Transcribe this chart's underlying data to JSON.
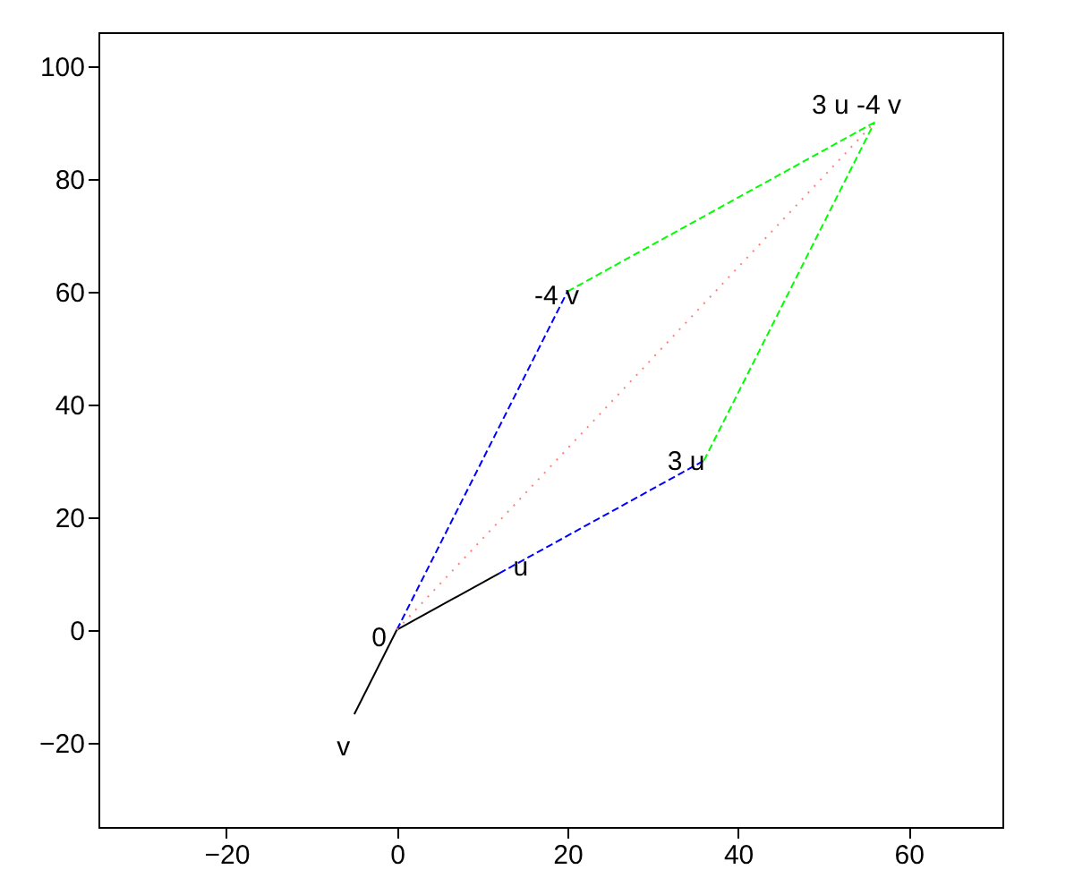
{
  "chart_data": {
    "type": "line",
    "grid": false,
    "marker": "none",
    "xlim": [
      -35,
      71
    ],
    "ylim": [
      -35,
      106
    ],
    "xticks": [
      -20,
      0,
      20,
      40,
      60
    ],
    "yticks": [
      -20,
      0,
      20,
      40,
      60,
      80,
      100
    ],
    "series": [
      {
        "color": "#000000",
        "line_style": "solid",
        "x": [
          0,
          12
        ],
        "values": [
          0,
          10
        ]
      },
      {
        "color": "#000000",
        "line_style": "solid",
        "x": [
          0,
          -5
        ],
        "values": [
          0,
          -15
        ]
      },
      {
        "color": "#0000ff",
        "line_style": "dashed",
        "x": [
          12,
          36
        ],
        "values": [
          10,
          30
        ]
      },
      {
        "color": "#0000ff",
        "line_style": "dashed",
        "x": [
          0,
          20
        ],
        "values": [
          0,
          60
        ]
      },
      {
        "color": "#00ff00",
        "line_style": "dashed",
        "x": [
          20,
          56
        ],
        "values": [
          60,
          90
        ]
      },
      {
        "color": "#00ff00",
        "line_style": "dashed",
        "x": [
          36,
          56
        ],
        "values": [
          30,
          90
        ]
      },
      {
        "color": "#ff8080",
        "line_style": "dotted",
        "x": [
          0,
          56
        ],
        "values": [
          0,
          90
        ]
      }
    ],
    "annotations": [
      {
        "text": "0",
        "x": 0,
        "y": 0
      },
      {
        "text": "u",
        "x": 12,
        "y": 10
      },
      {
        "text": "v",
        "x": -5,
        "y": -15
      },
      {
        "text": "3 u",
        "x": 36,
        "y": 30
      },
      {
        "text": "-4 v",
        "x": 20,
        "y": 60
      },
      {
        "text": "3 u -4 v",
        "x": 56,
        "y": 90
      }
    ]
  }
}
